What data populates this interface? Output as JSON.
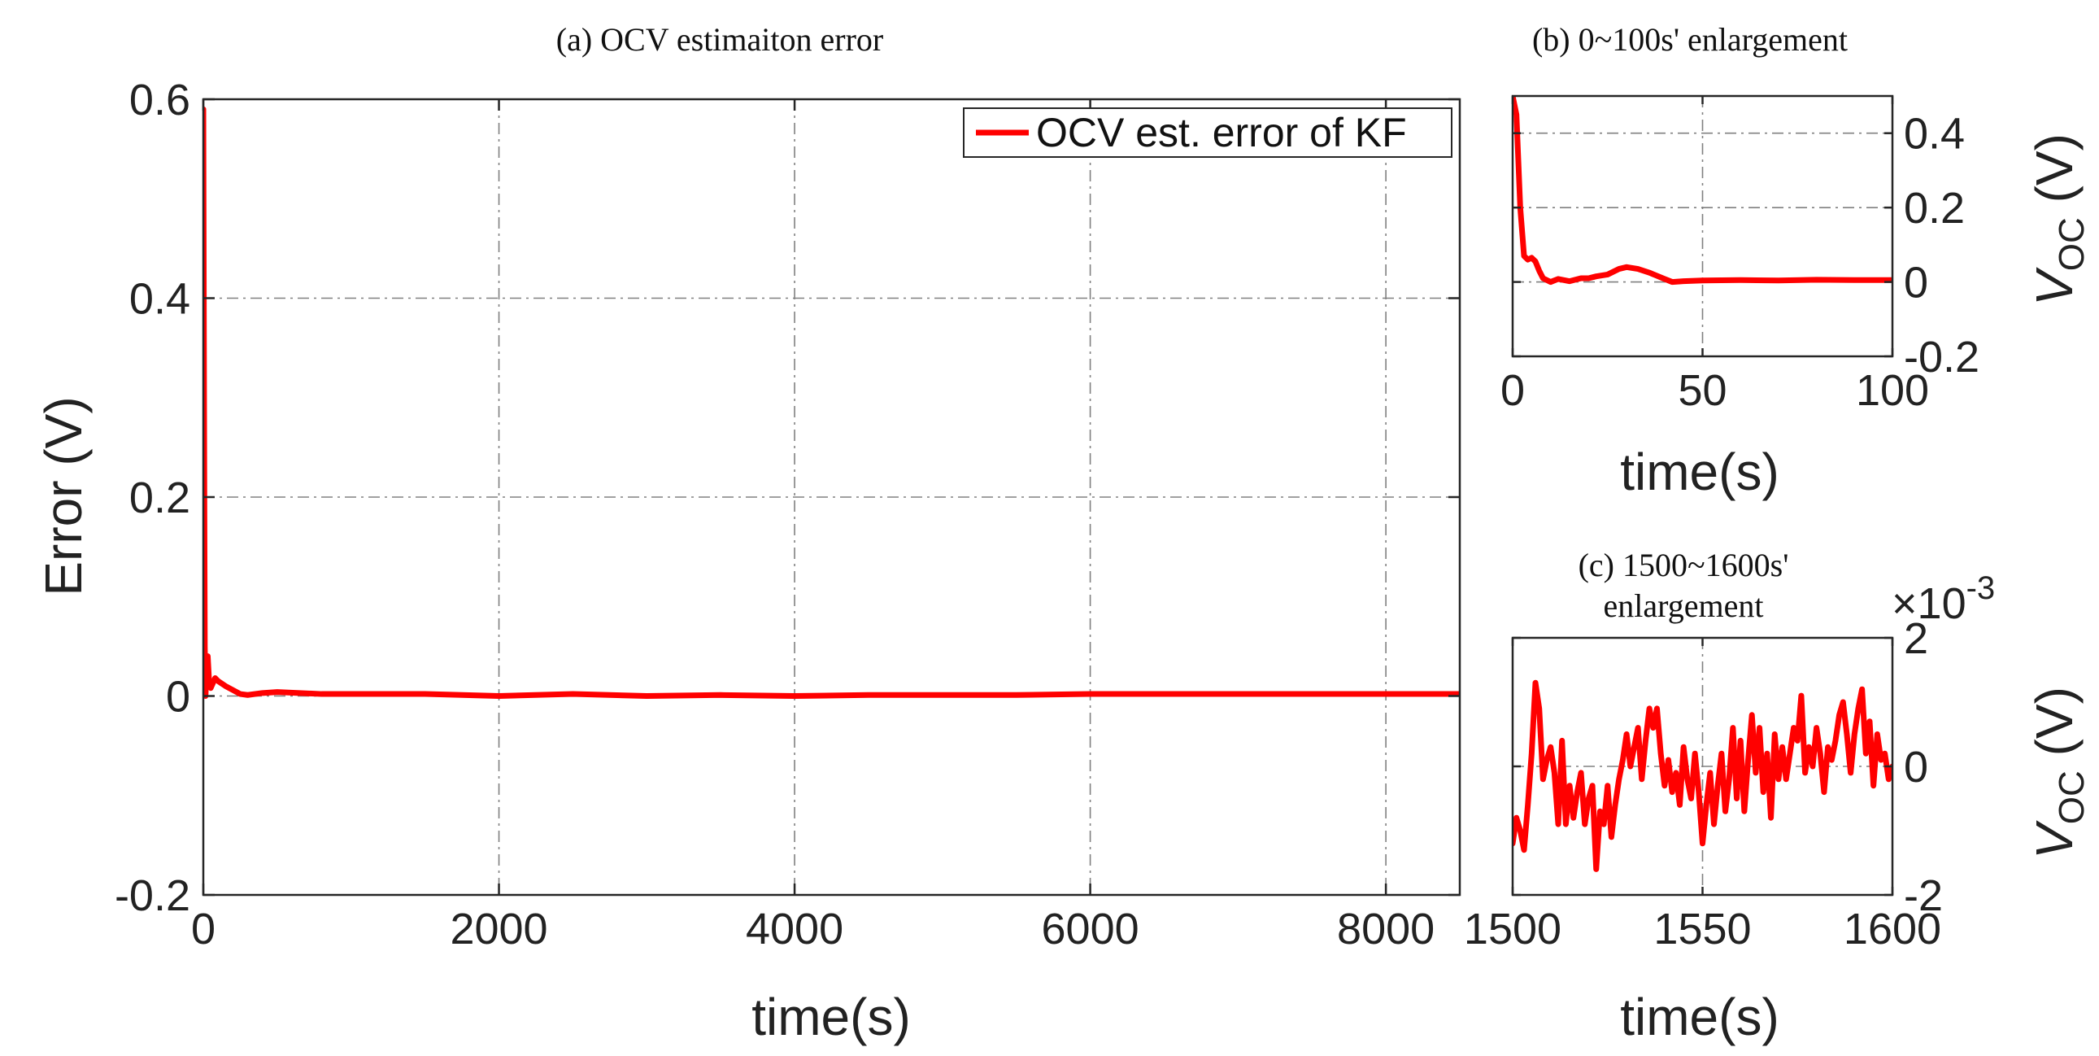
{
  "colors": {
    "series": "#ff0000",
    "axis": "#262626",
    "grid": "#808080"
  },
  "chart_data": [
    {
      "id": "a",
      "type": "line",
      "title": "(a) OCV estimaiton error",
      "xlabel": "time(s)",
      "ylabel": "Error (V)",
      "xlim": [
        0,
        8500
      ],
      "ylim": [
        -0.2,
        0.6
      ],
      "xticks": [
        0,
        2000,
        4000,
        6000,
        8000
      ],
      "xtick_labels": [
        "0",
        "2000",
        "4000",
        "6000",
        "8000"
      ],
      "yticks": [
        -0.2,
        0,
        0.2,
        0.4,
        0.6
      ],
      "ytick_labels": [
        "-0.2",
        "0",
        "0.2",
        "0.4",
        "0.6"
      ],
      "grid": true,
      "legend": {
        "position": "top-right",
        "entries": [
          "OCV est. error of KF"
        ]
      },
      "series": [
        {
          "name": "OCV est. error of KF",
          "x": [
            0,
            5,
            10,
            15,
            20,
            30,
            40,
            50,
            80,
            100,
            150,
            200,
            250,
            300,
            400,
            500,
            800,
            1000,
            1500,
            2000,
            2500,
            3000,
            3500,
            4000,
            4500,
            5000,
            5500,
            6000,
            6500,
            7000,
            7500,
            8000,
            8500
          ],
          "y": [
            0.59,
            0.3,
            0.05,
            0.0,
            0.02,
            0.04,
            0.012,
            0.008,
            0.018,
            0.015,
            0.01,
            0.006,
            0.002,
            0.001,
            0.003,
            0.004,
            0.002,
            0.002,
            0.002,
            0.0,
            0.002,
            0.0,
            0.001,
            0.0,
            0.001,
            0.001,
            0.001,
            0.002,
            0.002,
            0.002,
            0.002,
            0.002,
            0.002
          ]
        }
      ]
    },
    {
      "id": "b",
      "type": "line",
      "title": "(b) 0~100s' enlargement",
      "xlabel": "time(s)",
      "ylabel_main": "V",
      "ylabel_sub": "OC",
      "ylabel_unit": " (V)",
      "xlim": [
        0,
        100
      ],
      "ylim": [
        -0.2,
        0.5
      ],
      "xticks": [
        0,
        50,
        100
      ],
      "xtick_labels": [
        "0",
        "50",
        "100"
      ],
      "yticks": [
        -0.2,
        0,
        0.2,
        0.4
      ],
      "ytick_labels": [
        "-0.2",
        "0",
        "0.2",
        "0.4"
      ],
      "yaxis_side": "right",
      "grid": true,
      "series": [
        {
          "name": "OCV est. error of KF",
          "x": [
            0,
            1,
            2,
            3,
            4,
            5,
            6,
            7,
            8,
            10,
            12,
            15,
            18,
            20,
            22,
            25,
            28,
            30,
            33,
            36,
            40,
            42,
            45,
            50,
            60,
            70,
            80,
            90,
            100
          ],
          "y": [
            0.5,
            0.45,
            0.2,
            0.07,
            0.06,
            0.065,
            0.055,
            0.03,
            0.01,
            0.0,
            0.008,
            0.002,
            0.01,
            0.01,
            0.015,
            0.02,
            0.035,
            0.04,
            0.035,
            0.025,
            0.008,
            0.0,
            0.002,
            0.004,
            0.005,
            0.004,
            0.006,
            0.005,
            0.005
          ]
        }
      ]
    },
    {
      "id": "c",
      "type": "line",
      "title": "(c) 1500~1600s'",
      "title_line2": "enlargement",
      "xlabel": "time(s)",
      "ylabel_main": "V",
      "ylabel_sub": "OC",
      "ylabel_unit": " (V)",
      "scale_base": "×10",
      "scale_exp": "-3",
      "xlim": [
        1500,
        1600
      ],
      "ylim": [
        -2,
        2
      ],
      "xticks": [
        1500,
        1550,
        1600
      ],
      "xtick_labels": [
        "1500",
        "1550",
        "1600"
      ],
      "yticks": [
        -2,
        0,
        2
      ],
      "ytick_labels": [
        "-2",
        "0",
        "2"
      ],
      "yaxis_side": "right",
      "grid": true,
      "series": [
        {
          "name": "OCV est. error of KF",
          "x": [
            1500,
            1501,
            1502,
            1503,
            1504,
            1505,
            1506,
            1507,
            1508,
            1509,
            1510,
            1511,
            1512,
            1513,
            1514,
            1515,
            1516,
            1517,
            1518,
            1519,
            1520,
            1521,
            1522,
            1523,
            1524,
            1525,
            1526,
            1527,
            1528,
            1529,
            1530,
            1531,
            1532,
            1533,
            1534,
            1535,
            1536,
            1537,
            1538,
            1539,
            1540,
            1541,
            1542,
            1543,
            1544,
            1545,
            1546,
            1547,
            1548,
            1549,
            1550,
            1551,
            1552,
            1553,
            1554,
            1555,
            1556,
            1557,
            1558,
            1559,
            1560,
            1561,
            1562,
            1563,
            1564,
            1565,
            1566,
            1567,
            1568,
            1569,
            1570,
            1571,
            1572,
            1573,
            1574,
            1575,
            1576,
            1577,
            1578,
            1579,
            1580,
            1581,
            1582,
            1583,
            1584,
            1585,
            1586,
            1587,
            1588,
            1589,
            1590,
            1591,
            1592,
            1593,
            1594,
            1595,
            1596,
            1597,
            1598,
            1599,
            1600
          ],
          "y": [
            -1.2,
            -0.8,
            -1.0,
            -1.3,
            -0.6,
            0.2,
            1.3,
            0.9,
            -0.2,
            0.1,
            0.3,
            -0.1,
            -0.9,
            0.4,
            -0.9,
            -0.3,
            -0.8,
            -0.4,
            -0.1,
            -0.9,
            -0.5,
            -0.3,
            -1.6,
            -0.7,
            -0.9,
            -0.3,
            -1.1,
            -0.6,
            -0.2,
            0.1,
            0.5,
            0.0,
            0.3,
            0.6,
            -0.2,
            0.4,
            0.9,
            0.6,
            0.9,
            0.2,
            -0.3,
            0.1,
            -0.4,
            -0.1,
            -0.6,
            0.3,
            -0.2,
            -0.5,
            0.2,
            -0.4,
            -1.2,
            -0.6,
            -0.1,
            -0.9,
            -0.3,
            0.2,
            -0.7,
            -0.2,
            0.6,
            -0.5,
            0.4,
            -0.7,
            0.1,
            0.8,
            -0.1,
            0.6,
            -0.4,
            0.2,
            -0.8,
            0.5,
            -0.2,
            0.3,
            -0.2,
            0.2,
            0.6,
            0.4,
            1.1,
            -0.1,
            0.3,
            0.0,
            0.6,
            0.2,
            -0.4,
            0.3,
            0.1,
            0.4,
            0.8,
            1.0,
            0.5,
            -0.1,
            0.5,
            0.9,
            1.2,
            0.2,
            0.7,
            -0.3,
            0.5,
            0.1,
            0.2,
            -0.2,
            0.0
          ]
        }
      ]
    }
  ]
}
